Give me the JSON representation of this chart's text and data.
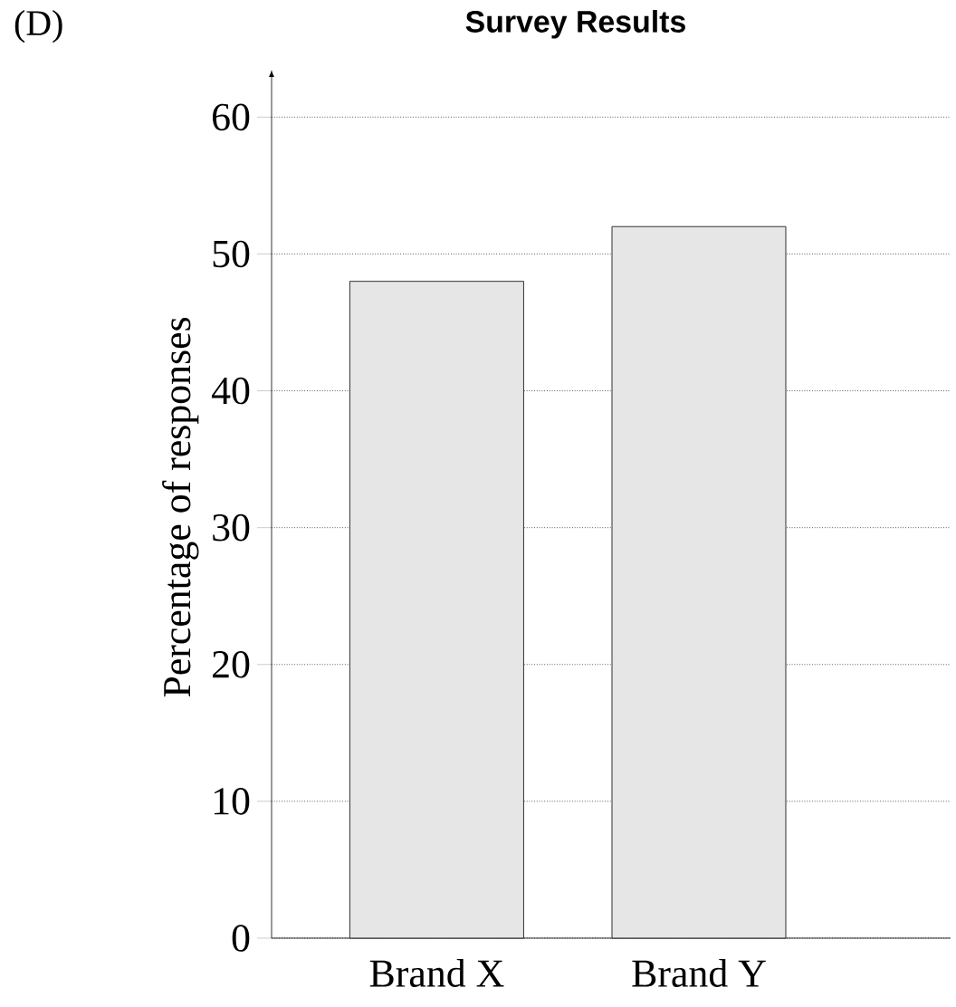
{
  "chart_data": {
    "type": "bar",
    "title": "Survey Results",
    "ylabel": "Percentage of responses",
    "annotations": [
      "(D)"
    ],
    "categories": [
      "Brand X",
      "Brand Y"
    ],
    "values": [
      48,
      52
    ],
    "color": "#e6e6e6",
    "ylim": [
      0,
      63
    ],
    "yticks": [
      0,
      10,
      20,
      30,
      40,
      50,
      60
    ],
    "grid": "y"
  }
}
